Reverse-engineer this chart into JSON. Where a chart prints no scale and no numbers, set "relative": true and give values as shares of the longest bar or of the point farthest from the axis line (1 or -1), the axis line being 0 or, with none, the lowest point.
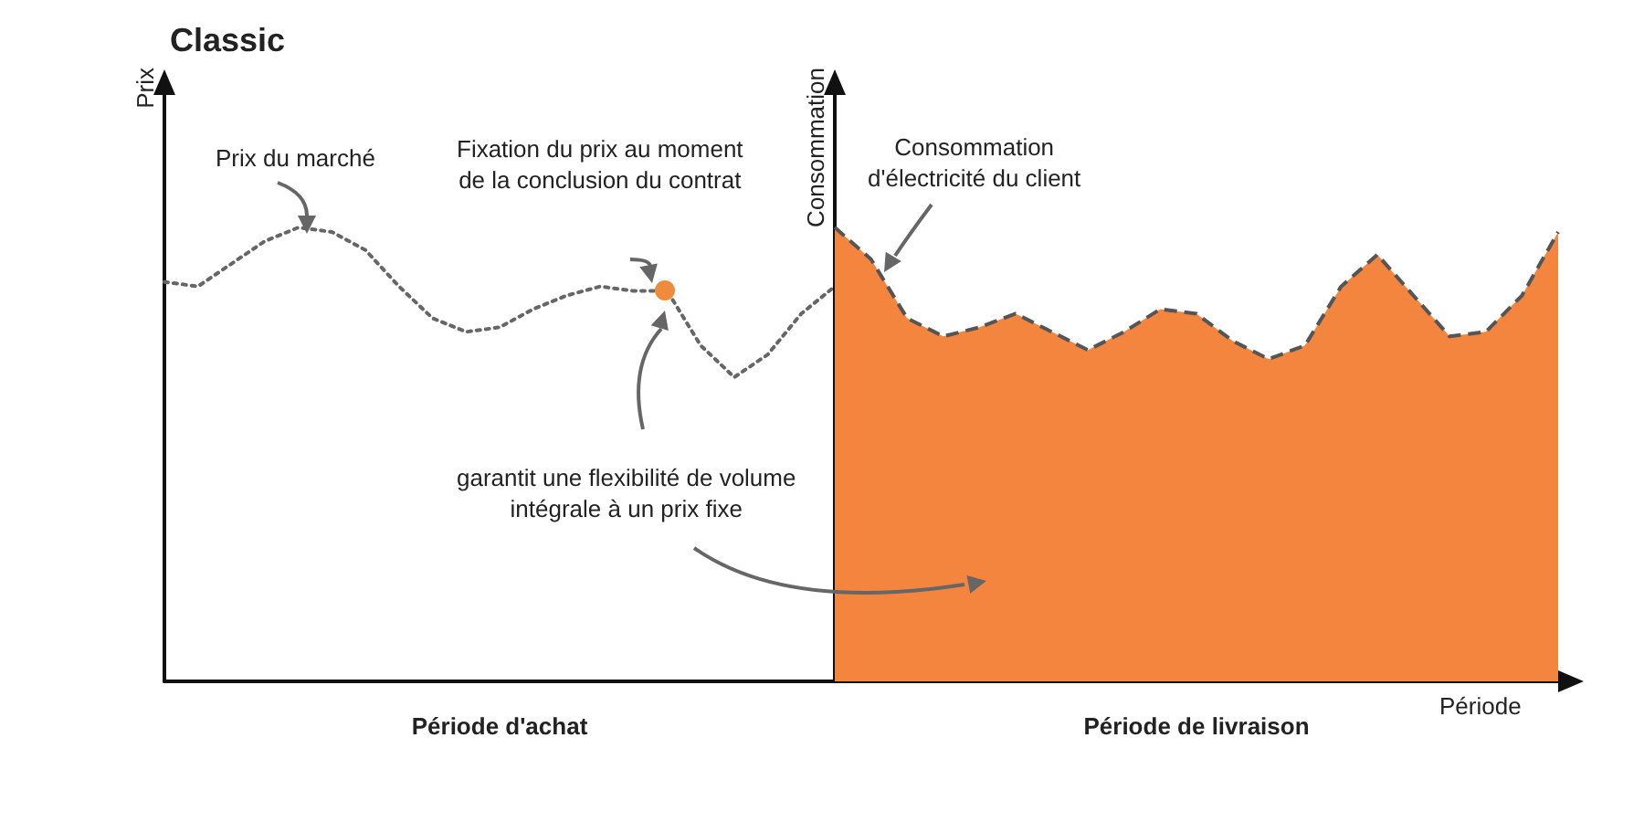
{
  "chart_data": [
    {
      "type": "line",
      "title": "Classic",
      "ylabel": "Prix",
      "xlabel": "Période d'achat",
      "relative": true,
      "marker": "none",
      "line_style": "dotted",
      "categories": [
        null,
        null,
        null,
        null,
        null,
        null,
        null,
        null,
        null,
        null,
        null,
        null,
        null,
        null,
        null,
        null,
        null,
        null,
        null,
        null,
        null
      ],
      "series": [
        {
          "color": "#666666",
          "values": [
            0.88,
            0.87,
            0.92,
            0.97,
            1,
            0.99,
            0.95,
            0.87,
            0.8,
            0.77,
            0.78,
            0.82,
            0.85,
            0.87,
            0.86,
            0.86,
            0.74,
            0.67,
            0.72,
            0.81,
            0.87
          ]
        }
      ],
      "annotations": [
        "Prix du marché",
        "Fixation du prix au moment\nde la conclusion du contrat"
      ]
    },
    {
      "type": "area",
      "ylabel": "Consommation",
      "xlabel": "Période de livraison",
      "relative": true,
      "marker": "none",
      "line_style": "dashed",
      "categories": [
        null,
        null,
        null,
        null,
        null,
        null,
        null,
        null,
        null,
        null,
        null,
        null,
        null,
        null,
        null,
        null,
        null,
        null,
        null,
        null,
        null
      ],
      "series": [
        {
          "color": "#f4853e",
          "values": [
            1,
            0.93,
            0.8,
            0.76,
            0.78,
            0.81,
            0.77,
            0.73,
            0.77,
            0.82,
            0.81,
            0.75,
            0.71,
            0.74,
            0.87,
            0.94,
            0.85,
            0.76,
            0.77,
            0.85,
            0.99
          ]
        }
      ],
      "annotations": [
        "Consommation\nd'électricité du client",
        "garantit une flexibilité de volume\nintégrale à un prix fixe",
        "Période"
      ]
    }
  ]
}
